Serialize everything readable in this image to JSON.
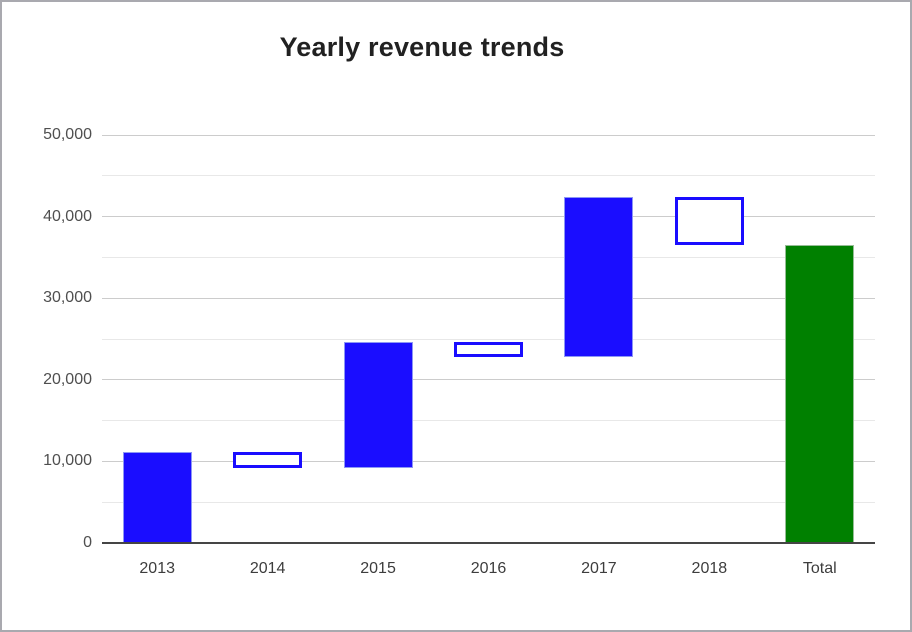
{
  "window": {
    "background_color": "#ffffff",
    "border_color": "#a9a9af"
  },
  "chart_data": {
    "type": "waterfall",
    "title": "Yearly revenue trends",
    "xlabel": "",
    "ylabel": "",
    "grid": true,
    "legend": "none",
    "categories": [
      "2013",
      "2014",
      "2015",
      "2016",
      "2017",
      "2018",
      "Total"
    ],
    "bars": [
      {
        "label": "2013",
        "start": 0,
        "end": 11200,
        "delta": 11200,
        "kind": "increase"
      },
      {
        "label": "2014",
        "start": 11200,
        "end": 9200,
        "delta": -2000,
        "kind": "decrease"
      },
      {
        "label": "2015",
        "start": 9200,
        "end": 24600,
        "delta": 15400,
        "kind": "increase"
      },
      {
        "label": "2016",
        "start": 24600,
        "end": 22800,
        "delta": -1800,
        "kind": "decrease"
      },
      {
        "label": "2017",
        "start": 22800,
        "end": 42400,
        "delta": 19600,
        "kind": "increase"
      },
      {
        "label": "2018",
        "start": 42400,
        "end": 36500,
        "delta": -5900,
        "kind": "decrease"
      },
      {
        "label": "Total",
        "start": 0,
        "end": 36500,
        "delta": 36500,
        "kind": "total"
      }
    ],
    "y_axis": {
      "min": 0,
      "max": 50000,
      "major_step": 10000,
      "minor_step": 5000,
      "tick_labels": [
        "0",
        "10,000",
        "20,000",
        "30,000",
        "40,000",
        "50,000"
      ]
    },
    "colors": {
      "increase_fill": "#1a0dff",
      "increase_edge": "#8d97f5",
      "decrease_fill": "#ffffff",
      "decrease_border": "#1a0dff",
      "total_fill": "#008000",
      "total_edge": "#97bd97",
      "major_grid": "#cccccc",
      "minor_grid": "#e8e8e8",
      "baseline": "#454545",
      "title_color": "#212121",
      "axis_label_color": "#3d3d3d"
    }
  }
}
